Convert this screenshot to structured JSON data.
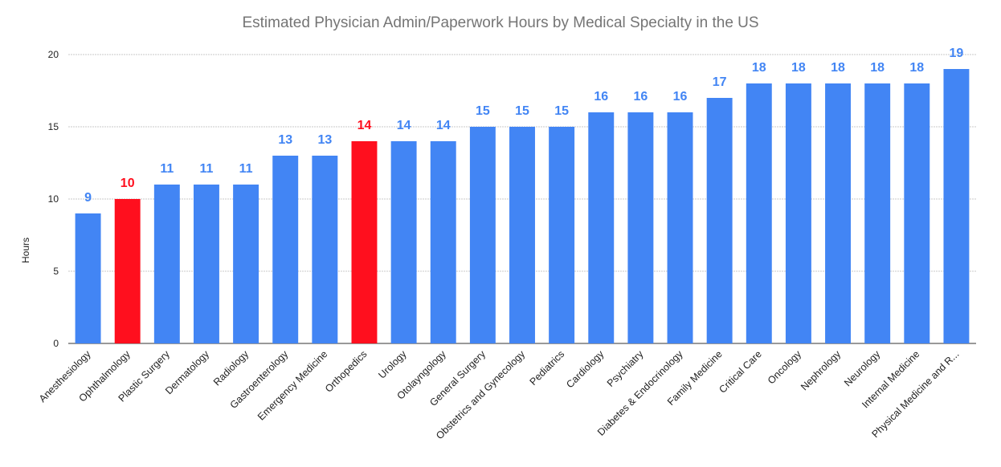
{
  "chart_data": {
    "type": "bar",
    "title": "Estimated Physician Admin/Paperwork Hours by Medical Specialty in the US",
    "xlabel": "",
    "ylabel": "Hours",
    "ylim": [
      0,
      20
    ],
    "yticks": [
      0,
      5,
      10,
      15,
      20
    ],
    "grid": true,
    "categories": [
      "Anesthesiology",
      "Ophthalmology",
      "Plastic Surgery",
      "Dermatology",
      "Radiology",
      "Gastroenterology",
      "Emergency Medicine",
      "Orthopedics",
      "Urology",
      "Otolayngology",
      "General Surgery",
      "Obstetrics and Gynecology",
      "Pediatrics",
      "Cardiology",
      "Psychiatry",
      "Diabetes & Endocrinology",
      "Family Medicine",
      "Critical Care",
      "Oncology",
      "Nephrology",
      "Neurology",
      "Internal Medicine",
      "Physical Medicine and R..."
    ],
    "values": [
      9,
      10,
      11,
      11,
      11,
      13,
      13,
      14,
      14,
      14,
      15,
      15,
      15,
      16,
      16,
      16,
      17,
      18,
      18,
      18,
      18,
      18,
      19
    ],
    "highlighted": [
      "Ophthalmology",
      "Orthopedics"
    ],
    "colors": {
      "default": "#4285f4",
      "highlight": "#ff0f1e"
    }
  }
}
